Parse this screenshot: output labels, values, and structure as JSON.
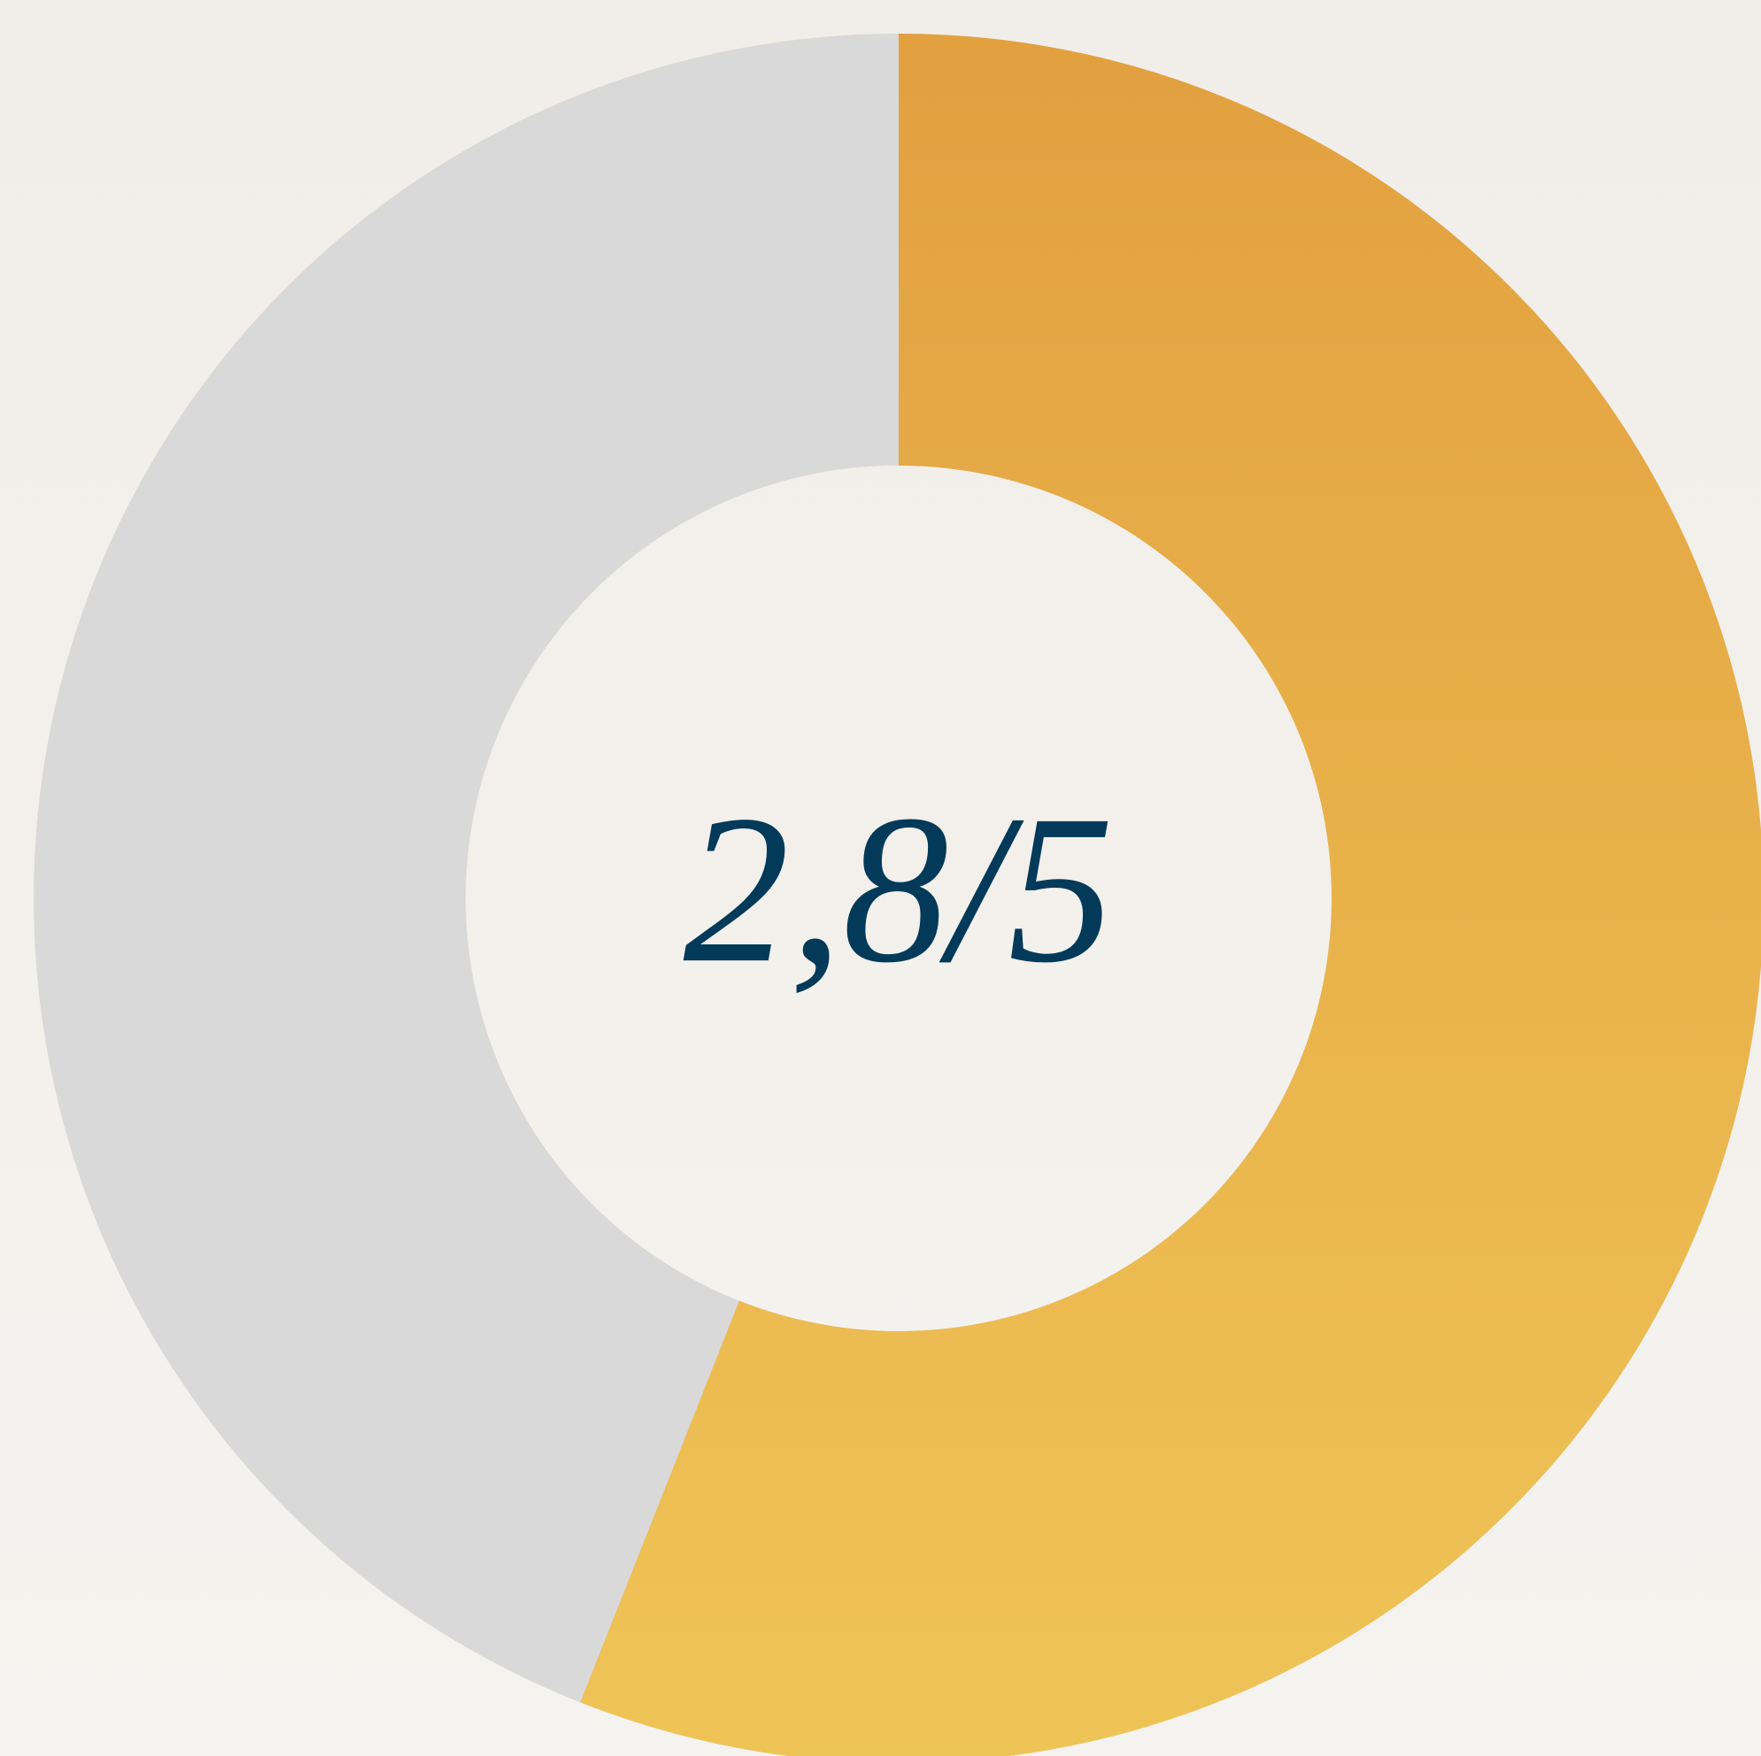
{
  "chart_data": {
    "type": "donut",
    "center_label": "2,8/5",
    "value": 2.8,
    "max": 5,
    "color_top": "#e2a03f",
    "color_bottom": "#efc457",
    "track_color": "#d9d9d9"
  }
}
